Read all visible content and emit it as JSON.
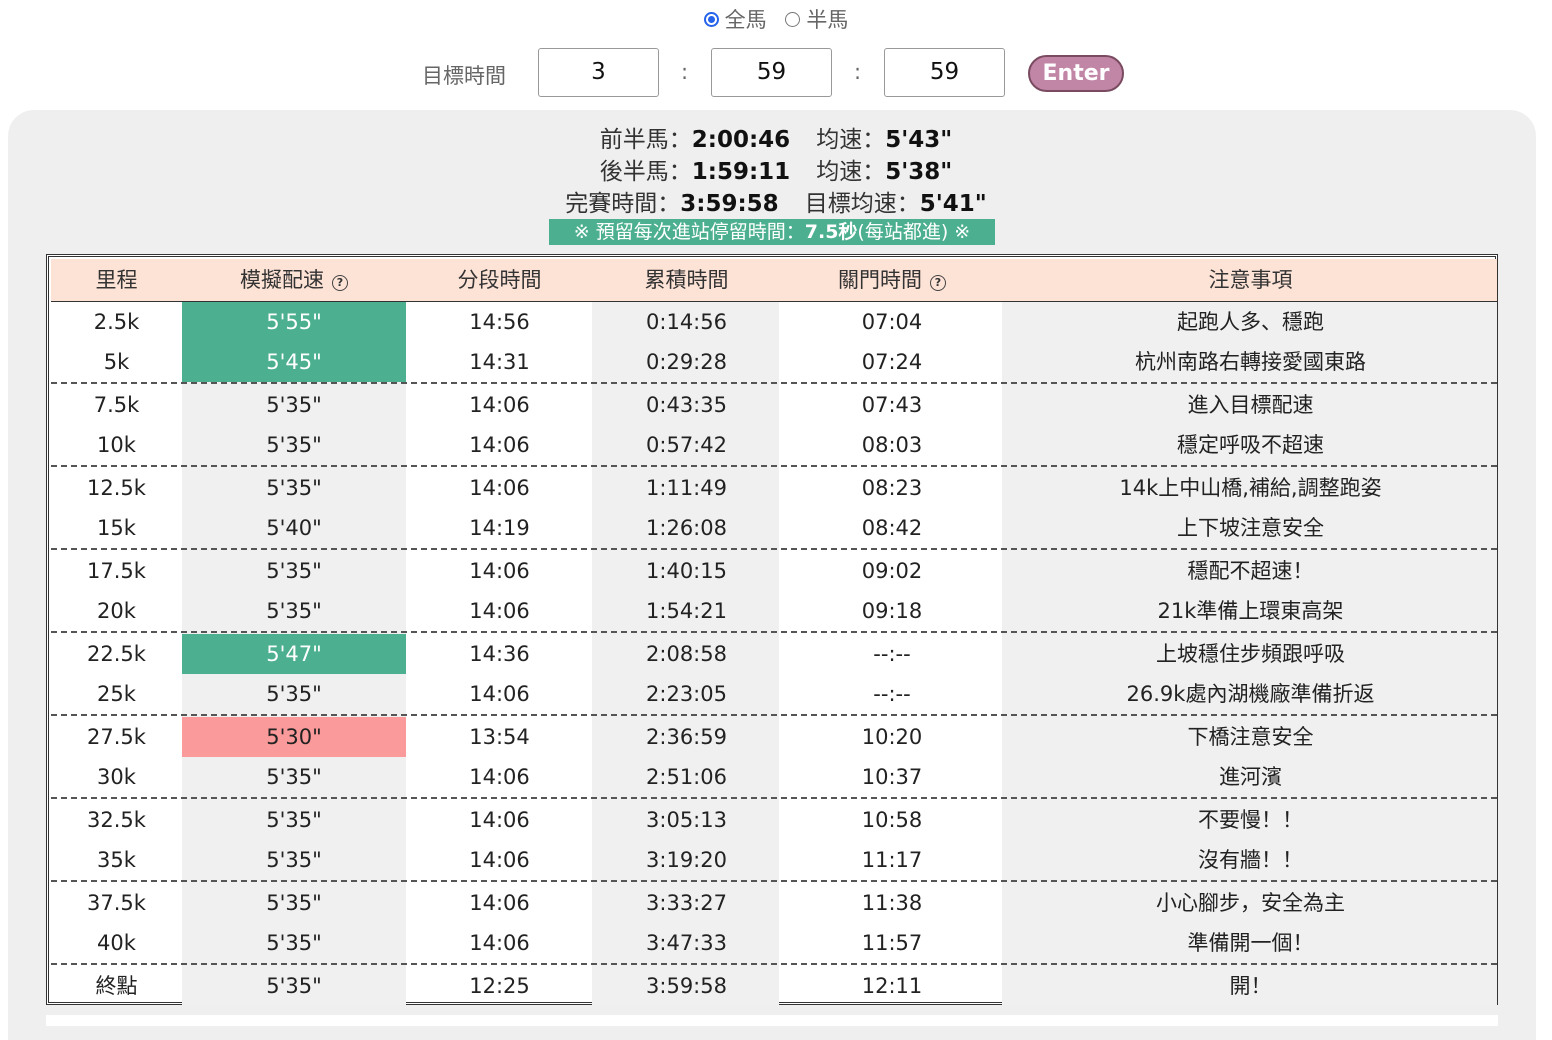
{
  "race_options": [
    {
      "label": "全馬",
      "selected": true
    },
    {
      "label": "半馬",
      "selected": false
    }
  ],
  "target": {
    "label": "目標時間",
    "hours": "3",
    "minutes": "59",
    "seconds": "59",
    "separator": ":",
    "enter_label": "Enter"
  },
  "summary": {
    "first_half_label": "前半馬：",
    "first_half_time": "2:00:46",
    "first_pace_label": "均速：",
    "first_pace": "5'43\"",
    "second_half_label": "後半馬：",
    "second_half_time": "1:59:11",
    "second_pace_label": "均速：",
    "second_pace": "5'38\"",
    "finish_label": "完賽時間：",
    "finish_time": "3:59:58",
    "target_pace_label": "目標均速：",
    "target_pace": "5'41\""
  },
  "note": {
    "prefix": "※ 預留每次進站停留時間：",
    "value": "7.5秒",
    "suffix": "(每站都進) ※"
  },
  "columns": [
    "里程",
    "模擬配速",
    "分段時間",
    "累積時間",
    "關門時間",
    "注意事項"
  ],
  "accent_colors": {
    "pace_slow": "#4caf8f",
    "pace_fast": "#fb9a9a",
    "header_bg": "#fde2d6"
  },
  "rows": [
    {
      "dist": "2.5k",
      "pace": "5'55\"",
      "pace_state": "green",
      "split": "14:56",
      "cum": "0:14:56",
      "cutoff": "07:04",
      "note": "起跑人多、穩跑"
    },
    {
      "dist": "5k",
      "pace": "5'45\"",
      "pace_state": "green",
      "split": "14:31",
      "cum": "0:29:28",
      "cutoff": "07:24",
      "note": "杭州南路右轉接愛國東路"
    },
    {
      "dist": "7.5k",
      "pace": "5'35\"",
      "pace_state": "",
      "split": "14:06",
      "cum": "0:43:35",
      "cutoff": "07:43",
      "note": "進入目標配速"
    },
    {
      "dist": "10k",
      "pace": "5'35\"",
      "pace_state": "",
      "split": "14:06",
      "cum": "0:57:42",
      "cutoff": "08:03",
      "note": "穩定呼吸不超速"
    },
    {
      "dist": "12.5k",
      "pace": "5'35\"",
      "pace_state": "",
      "split": "14:06",
      "cum": "1:11:49",
      "cutoff": "08:23",
      "note": "14k上中山橋,補給,調整跑姿"
    },
    {
      "dist": "15k",
      "pace": "5'40\"",
      "pace_state": "",
      "split": "14:19",
      "cum": "1:26:08",
      "cutoff": "08:42",
      "note": "上下坡注意安全"
    },
    {
      "dist": "17.5k",
      "pace": "5'35\"",
      "pace_state": "",
      "split": "14:06",
      "cum": "1:40:15",
      "cutoff": "09:02",
      "note": "穩配不超速！"
    },
    {
      "dist": "20k",
      "pace": "5'35\"",
      "pace_state": "",
      "split": "14:06",
      "cum": "1:54:21",
      "cutoff": "09:18",
      "note": "21k準備上環東高架"
    },
    {
      "dist": "22.5k",
      "pace": "5'47\"",
      "pace_state": "green",
      "split": "14:36",
      "cum": "2:08:58",
      "cutoff": "--:--",
      "note": "上坡穩住步頻跟呼吸"
    },
    {
      "dist": "25k",
      "pace": "5'35\"",
      "pace_state": "",
      "split": "14:06",
      "cum": "2:23:05",
      "cutoff": "--:--",
      "note": "26.9k處內湖機廠準備折返"
    },
    {
      "dist": "27.5k",
      "pace": "5'30\"",
      "pace_state": "red",
      "split": "13:54",
      "cum": "2:36:59",
      "cutoff": "10:20",
      "note": "下橋注意安全"
    },
    {
      "dist": "30k",
      "pace": "5'35\"",
      "pace_state": "",
      "split": "14:06",
      "cum": "2:51:06",
      "cutoff": "10:37",
      "note": "進河濱"
    },
    {
      "dist": "32.5k",
      "pace": "5'35\"",
      "pace_state": "",
      "split": "14:06",
      "cum": "3:05:13",
      "cutoff": "10:58",
      "note": "不要慢！！"
    },
    {
      "dist": "35k",
      "pace": "5'35\"",
      "pace_state": "",
      "split": "14:06",
      "cum": "3:19:20",
      "cutoff": "11:17",
      "note": "沒有牆！！"
    },
    {
      "dist": "37.5k",
      "pace": "5'35\"",
      "pace_state": "",
      "split": "14:06",
      "cum": "3:33:27",
      "cutoff": "11:38",
      "note": "小心腳步，安全為主"
    },
    {
      "dist": "40k",
      "pace": "5'35\"",
      "pace_state": "",
      "split": "14:06",
      "cum": "3:47:33",
      "cutoff": "11:57",
      "note": "準備開一個！"
    },
    {
      "dist": "終點",
      "pace": "5'35\"",
      "pace_state": "",
      "split": "12:25",
      "cum": "3:59:58",
      "cutoff": "12:11",
      "note": "開！"
    }
  ]
}
